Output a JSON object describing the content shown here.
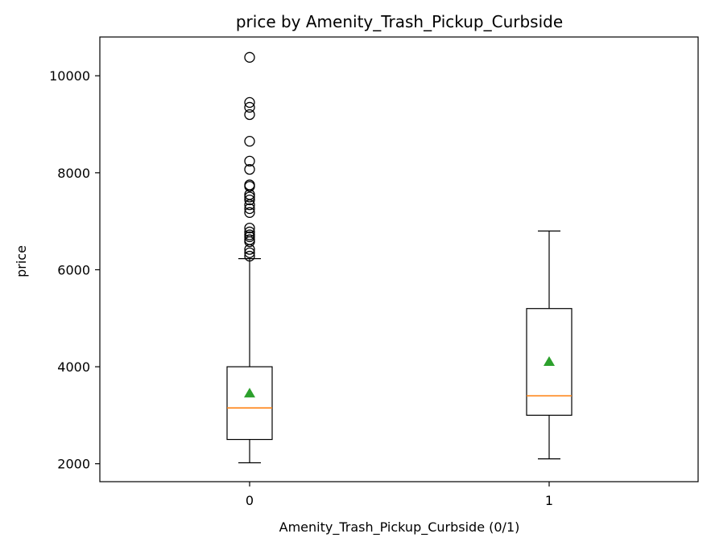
{
  "chart_data": {
    "type": "box",
    "title": "price by Amenity_Trash_Pickup_Curbside",
    "xlabel": "Amenity_Trash_Pickup_Curbside (0/1)",
    "ylabel": "price",
    "ylim": [
      1630,
      10800
    ],
    "yticks": [
      2000,
      4000,
      6000,
      8000,
      10000
    ],
    "categories": [
      "0",
      "1"
    ],
    "boxes": [
      {
        "category": "0",
        "whisker_low": 2020,
        "q1": 2500,
        "median": 3150,
        "mean": 3450,
        "q3": 4000,
        "whisker_high": 6230,
        "outliers": [
          6280,
          6350,
          6420,
          6580,
          6620,
          6680,
          6720,
          6780,
          6860,
          7180,
          7260,
          7340,
          7440,
          7500,
          7550,
          7720,
          7750,
          8070,
          8240,
          8650,
          9200,
          9350,
          9450,
          10380
        ]
      },
      {
        "category": "1",
        "whisker_low": 2100,
        "q1": 3000,
        "median": 3400,
        "mean": 4100,
        "q3": 5200,
        "whisker_high": 6800,
        "outliers": []
      }
    ],
    "colors": {
      "median": "#ff7f0e",
      "mean": "#2ca02c",
      "box": "#000000"
    },
    "grid": false,
    "legend": "none"
  }
}
